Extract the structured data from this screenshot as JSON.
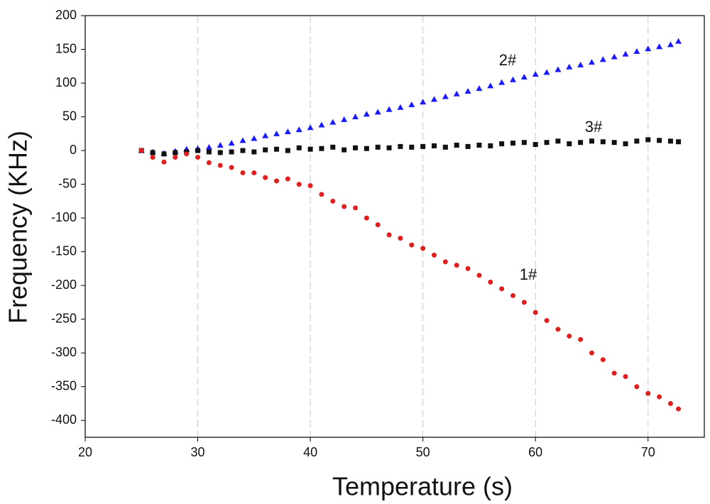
{
  "chart_data": {
    "type": "scatter",
    "x_label": "Temperature (s)",
    "y_label": "Frequency (KHz)",
    "xlim": [
      20,
      75
    ],
    "ylim": [
      -425,
      200
    ],
    "xticks": [
      20,
      30,
      40,
      50,
      60,
      70
    ],
    "yticks": [
      200,
      150,
      100,
      50,
      0,
      -50,
      -100,
      -150,
      -200,
      -250,
      -300,
      -350,
      -400
    ],
    "grid": true,
    "x": [
      25,
      26,
      27,
      28,
      29,
      30,
      31,
      32,
      33,
      34,
      35,
      36,
      37,
      38,
      39,
      40,
      41,
      42,
      43,
      44,
      45,
      46,
      47,
      48,
      49,
      50,
      51,
      52,
      53,
      54,
      55,
      56,
      57,
      58,
      59,
      60,
      61,
      62,
      63,
      64,
      65,
      66,
      67,
      68,
      69,
      70,
      71,
      72,
      72.7
    ],
    "series": [
      {
        "name": "2#",
        "color": "#1a1aff",
        "marker": "triangle",
        "values": [
          0,
          -2,
          -4,
          -1,
          2,
          3,
          5,
          8,
          11,
          15,
          18,
          22,
          25,
          28,
          31,
          34,
          38,
          42,
          46,
          50,
          54,
          57,
          61,
          64,
          68,
          72,
          76,
          80,
          84,
          88,
          92,
          96,
          101,
          105,
          109,
          113,
          116,
          120,
          124,
          127,
          131,
          135,
          139,
          143,
          147,
          151,
          154,
          157,
          162
        ]
      },
      {
        "name": "3#",
        "color": "#111111",
        "marker": "square",
        "values": [
          0,
          -3,
          -5,
          -3,
          -2,
          0,
          -2,
          -3,
          -2,
          0,
          -2,
          1,
          2,
          0,
          4,
          2,
          3,
          5,
          1,
          4,
          3,
          5,
          4,
          6,
          5,
          6,
          7,
          5,
          8,
          6,
          8,
          7,
          10,
          11,
          12,
          9,
          12,
          14,
          10,
          12,
          14,
          13,
          12,
          10,
          14,
          16,
          15,
          14,
          13
        ]
      },
      {
        "name": "1#",
        "color": "#e02020",
        "marker": "circle",
        "values": [
          0,
          -10,
          -17,
          -10,
          -5,
          -10,
          -18,
          -22,
          -25,
          -33,
          -33,
          -40,
          -45,
          -42,
          -50,
          -52,
          -65,
          -75,
          -83,
          -85,
          -100,
          -110,
          -125,
          -130,
          -140,
          -145,
          -155,
          -165,
          -170,
          -175,
          -185,
          -195,
          -205,
          -215,
          -225,
          -240,
          -252,
          -265,
          -275,
          -280,
          -300,
          -310,
          -330,
          -335,
          -350,
          -360,
          -365,
          -375,
          -383
        ]
      }
    ]
  }
}
